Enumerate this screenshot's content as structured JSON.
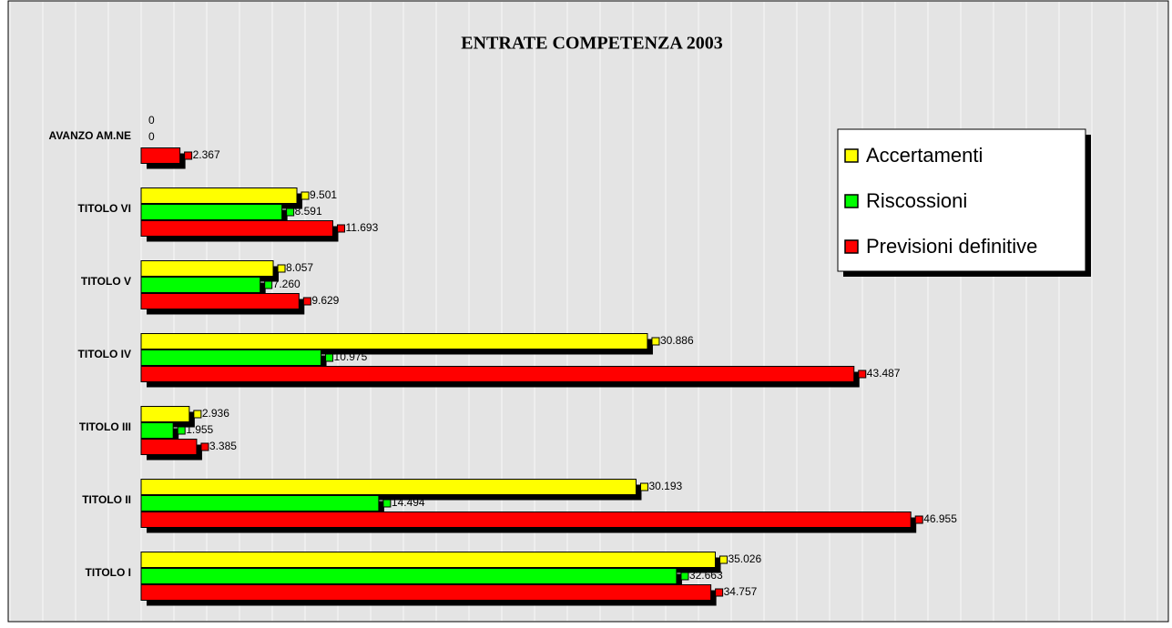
{
  "chart_data": {
    "type": "hbar",
    "title": "ENTRATE COMPETENZA 2003",
    "categories": [
      "AVANZO AM.NE",
      "TITOLO VI",
      "TITOLO V",
      "TITOLO IV",
      "TITOLO III",
      "TITOLO II",
      "TITOLO I"
    ],
    "series": [
      {
        "name": "Accertamenti",
        "color": "#ffff00",
        "values": [
          0,
          9.501,
          8.057,
          30.886,
          2.936,
          30.193,
          35.026
        ]
      },
      {
        "name": "Riscossioni",
        "color": "#00ff00",
        "values": [
          0,
          8.591,
          7.26,
          10.975,
          1.955,
          14.494,
          32.663
        ],
        "value_labels": [
          "0",
          "8.591",
          "7.260",
          "10.975",
          "1.955",
          "14.494",
          "32.663"
        ]
      },
      {
        "name": "Previsioni definitive",
        "color": "#ff0000",
        "values": [
          2.367,
          11.693,
          9.629,
          43.487,
          3.385,
          46.955,
          34.757
        ]
      }
    ],
    "xlim": [
      -8,
      62
    ],
    "xticks": [
      -8,
      -6,
      -4,
      -2,
      0,
      2,
      4,
      6,
      8,
      10,
      12,
      14,
      16,
      18,
      20,
      22,
      24,
      26,
      28,
      30,
      32,
      34,
      36,
      38,
      40,
      42,
      44,
      46,
      48,
      50,
      52,
      54,
      56,
      58,
      60,
      62
    ],
    "grid": true,
    "legend": "upper right"
  }
}
